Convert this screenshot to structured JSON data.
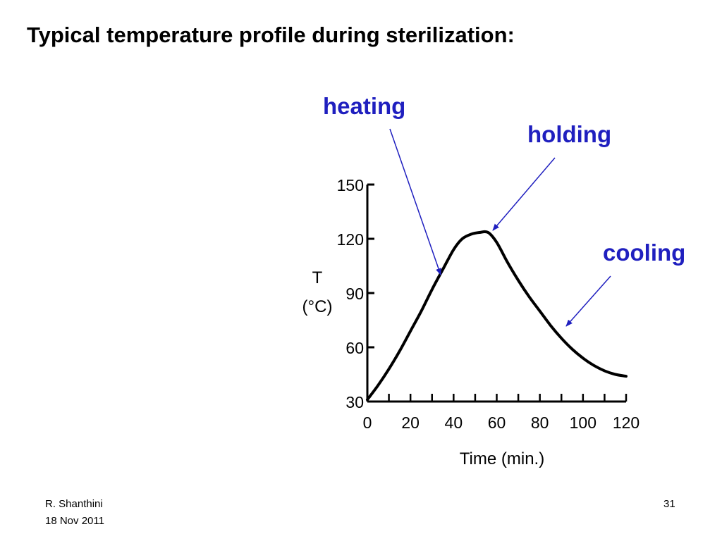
{
  "slide": {
    "title": "Typical temperature profile during sterilization:",
    "footer_author": "R. Shanthini",
    "footer_date": "18 Nov 2011",
    "page_number": "31"
  },
  "annotations": {
    "heating": "heating",
    "holding": "holding",
    "cooling": "cooling",
    "color": "#1f1fbf"
  },
  "chart_data": {
    "type": "line",
    "title": "",
    "xlabel": "Time (min.)",
    "ylabel": "T",
    "ylabel_unit": "(°C)",
    "xlim": [
      0,
      120
    ],
    "ylim": [
      30,
      150
    ],
    "x_ticks": [
      0,
      20,
      40,
      60,
      80,
      100,
      120
    ],
    "y_ticks": [
      30,
      60,
      90,
      120,
      150
    ],
    "grid": false,
    "series": [
      {
        "x": [
          0,
          5,
          10,
          15,
          20,
          25,
          30,
          35,
          40,
          44,
          48,
          52,
          56,
          60,
          65,
          70,
          75,
          80,
          85,
          90,
          95,
          100,
          105,
          110,
          115,
          120
        ],
        "y": [
          31,
          39,
          48,
          58,
          69,
          80,
          92,
          103,
          114,
          120,
          122.5,
          123.5,
          123.5,
          118,
          107,
          97,
          88,
          80,
          72,
          65,
          59,
          54,
          50,
          47,
          45,
          44
        ],
        "color": "#000000"
      }
    ]
  }
}
